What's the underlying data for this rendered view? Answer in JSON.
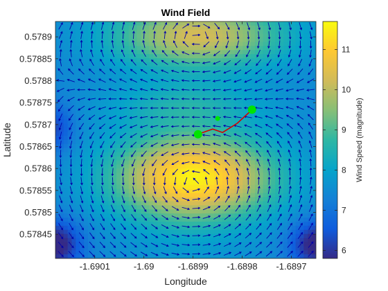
{
  "chart_data": {
    "type": "heatmap",
    "title": "Wind Field",
    "xlabel": "Longitude",
    "ylabel": "Latitude",
    "xlim": [
      -1.69018,
      -1.68965
    ],
    "ylim": [
      0.578395,
      0.578935
    ],
    "x_ticks": [
      -1.6901,
      -1.69,
      -1.6899,
      -1.6898,
      -1.6897
    ],
    "x_tick_labels": [
      "-1.6901",
      "-1.69",
      "-1.6899",
      "-1.6898",
      "-1.6897"
    ],
    "y_ticks": [
      0.57845,
      0.5785,
      0.57855,
      0.5786,
      0.57865,
      0.5787,
      0.57875,
      0.5788,
      0.57885,
      0.5789
    ],
    "y_tick_labels": [
      "0.57845",
      "0.5785",
      "0.57855",
      "0.5786",
      "0.57865",
      "0.5787",
      "0.57875",
      "0.5788",
      "0.57885",
      "0.5789"
    ],
    "colorbar": {
      "label": "Wind Speed (magnitude)",
      "range": [
        5.8,
        11.7
      ],
      "ticks": [
        6,
        7,
        8,
        9,
        10,
        11
      ],
      "tick_labels": [
        "6",
        "7",
        "8",
        "9",
        "10",
        "11"
      ],
      "colormap": "parula"
    },
    "colormap_stops": [
      "#352a87",
      "#0f5cdd",
      "#1481d6",
      "#06a4ca",
      "#2eb7a4",
      "#87bf77",
      "#d1bb59",
      "#fec832",
      "#f9fb0e"
    ],
    "wind_field": {
      "description": "two vortices with wind arrows",
      "speed_min": 5.8,
      "speed_max": 11.7
    },
    "path": {
      "color": "#d40000",
      "points": [
        [
          -1.68989,
          0.578678
        ],
        [
          -1.68986,
          0.57869
        ],
        [
          -1.68984,
          0.578682
        ],
        [
          -1.68981,
          0.578703
        ],
        [
          -1.68978,
          0.578734
        ]
      ]
    },
    "markers": [
      {
        "kind": "start",
        "color": "#00e400",
        "lon": -1.68989,
        "lat": 0.578678
      },
      {
        "kind": "waypoint",
        "color": "#00e400",
        "lon": -1.68985,
        "lat": 0.578714
      },
      {
        "kind": "goal",
        "color": "#00e400",
        "lon": -1.68978,
        "lat": 0.578734
      }
    ],
    "arrow_color": "#0000aa",
    "grid": false,
    "legend": "none"
  }
}
